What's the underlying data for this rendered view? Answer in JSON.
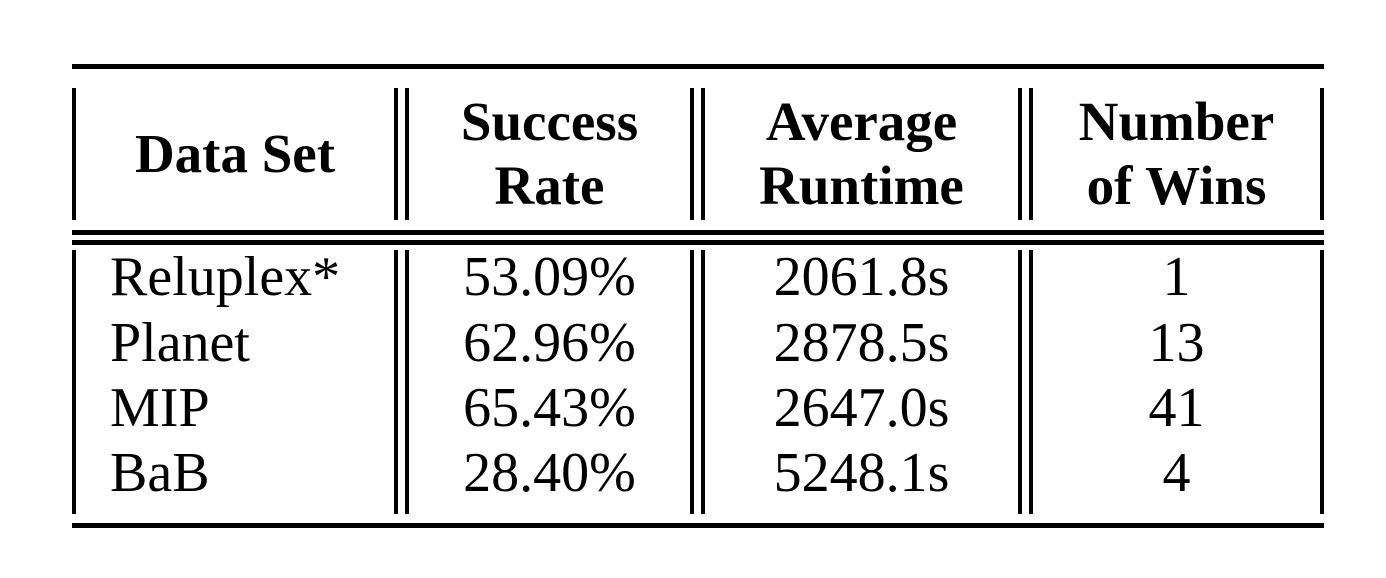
{
  "table": {
    "headers": [
      {
        "lines": [
          "Data Set"
        ]
      },
      {
        "lines": [
          "Success",
          "Rate"
        ]
      },
      {
        "lines": [
          "Average",
          "Runtime"
        ]
      },
      {
        "lines": [
          "Number",
          "of Wins"
        ]
      }
    ],
    "rows": [
      {
        "data_set": "Reluplex*",
        "success_rate": "53.09%",
        "average_runtime": "2061.8s",
        "number_of_wins": "1"
      },
      {
        "data_set": "Planet",
        "success_rate": "62.96%",
        "average_runtime": "2878.5s",
        "number_of_wins": "13"
      },
      {
        "data_set": "MIP",
        "success_rate": "65.43%",
        "average_runtime": "2647.0s",
        "number_of_wins": "41"
      },
      {
        "data_set": "BaB",
        "success_rate": "28.40%",
        "average_runtime": "5248.1s",
        "number_of_wins": "4"
      }
    ]
  }
}
